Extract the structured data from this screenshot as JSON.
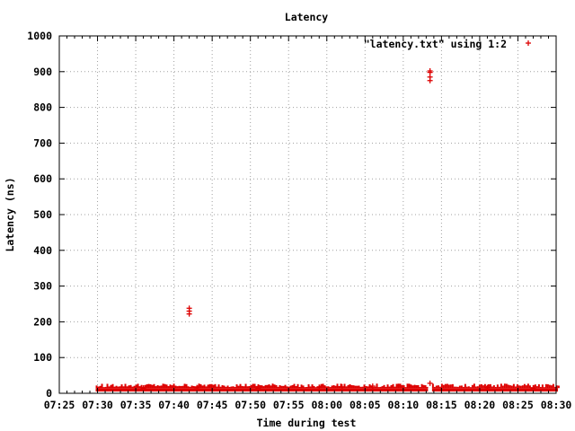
{
  "chart_data": {
    "type": "scatter",
    "title": "Latency",
    "xlabel": "Time during test",
    "ylabel": "Latency (ns)",
    "xlim": [
      "07:25",
      "08:30"
    ],
    "ylim": [
      0,
      1000
    ],
    "x_ticks": [
      "07:25",
      "07:30",
      "07:35",
      "07:40",
      "07:45",
      "07:50",
      "07:55",
      "08:00",
      "08:05",
      "08:10",
      "08:15",
      "08:20",
      "08:25",
      "08:30"
    ],
    "y_ticks": [
      0,
      100,
      200,
      300,
      400,
      500,
      600,
      700,
      800,
      900,
      1000
    ],
    "grid": true,
    "legend_position": "top-right",
    "series": [
      {
        "name": "\"latency.txt\" using 1:2",
        "color": "#dd0000",
        "marker": "plus",
        "dense_bands": [
          {
            "x_start": "07:30",
            "x_end": "08:13",
            "y_min": 0,
            "y_max": 12
          },
          {
            "x_start": "08:14",
            "x_end": "08:30",
            "y_min": 0,
            "y_max": 12
          }
        ],
        "points": [
          {
            "x": "07:42",
            "y": 222
          },
          {
            "x": "07:42",
            "y": 230
          },
          {
            "x": "07:42",
            "y": 238
          },
          {
            "x": "08:13.5",
            "y": 875
          },
          {
            "x": "08:13.5",
            "y": 885
          },
          {
            "x": "08:13.5",
            "y": 898
          },
          {
            "x": "08:13.5",
            "y": 902
          },
          {
            "x": "08:13.5",
            "y": 28
          },
          {
            "x": "07:43",
            "y": 16
          },
          {
            "x": "07:59",
            "y": 17
          },
          {
            "x": "08:02",
            "y": 18
          },
          {
            "x": "08:06",
            "y": 20
          },
          {
            "x": "07:36",
            "y": 15
          },
          {
            "x": "07:51",
            "y": 14
          },
          {
            "x": "08:21",
            "y": 16
          },
          {
            "x": "08:27",
            "y": 15
          }
        ]
      }
    ]
  }
}
